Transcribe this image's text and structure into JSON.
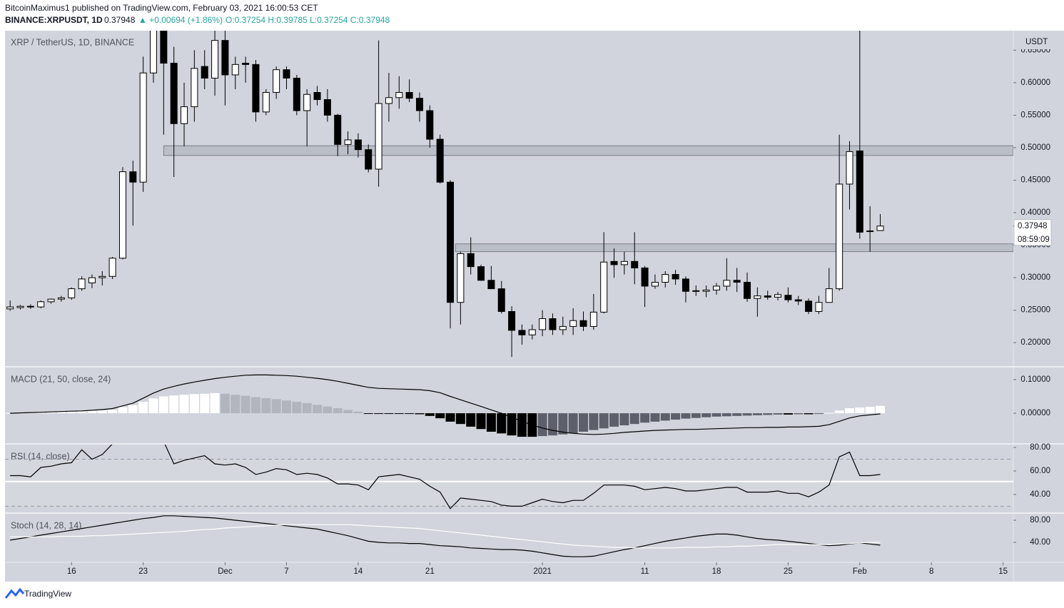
{
  "header": {
    "byline": "BitcoinMaximus1 published on TradingView.com, February 03, 2021 16:00:53 CET",
    "symbol": "BINANCE:XRPUSDT, 1D",
    "last": "0.37948",
    "change": "▲ +0.00694 (+1.86%)",
    "ohlc": "O:0.37254 H:0.39785 L:0.37254 C:0.37948"
  },
  "footer": {
    "brand": "TradingView"
  },
  "chart_data": [
    {
      "type": "candlestick",
      "title": "XRP / TetherUS, 1D, BINANCE",
      "currency": "USDT",
      "up_color": "#ffffff",
      "down_color": "#000000",
      "border_color": "#000000",
      "x": [
        0,
        1,
        2,
        3,
        4,
        5,
        6,
        7,
        8,
        9,
        10,
        11,
        12,
        13,
        14,
        15,
        16,
        17,
        18,
        19,
        20,
        21,
        22,
        23,
        24,
        25,
        26,
        27,
        28,
        29,
        30,
        31,
        32,
        33,
        34,
        35,
        36,
        37,
        38,
        39,
        40,
        41,
        42,
        43,
        44,
        45,
        46,
        47,
        48,
        49,
        50,
        51,
        52,
        53,
        54,
        55,
        56,
        57,
        58,
        59,
        60,
        61,
        62,
        63,
        64,
        65,
        66,
        67,
        68,
        69,
        70,
        71,
        72,
        73,
        74,
        75,
        76,
        77,
        78,
        79,
        80,
        81,
        82,
        83,
        84,
        85
      ],
      "open": [
        0.252,
        0.254,
        0.255,
        0.255,
        0.263,
        0.267,
        0.269,
        0.283,
        0.292,
        0.3,
        0.302,
        0.33,
        0.463,
        0.447,
        0.615,
        0.7,
        0.63,
        0.537,
        0.563,
        0.625,
        0.607,
        0.665,
        0.612,
        0.63,
        0.628,
        0.555,
        0.585,
        0.62,
        0.607,
        0.557,
        0.585,
        0.574,
        0.55,
        0.505,
        0.512,
        0.497,
        0.467,
        0.568,
        0.577,
        0.585,
        0.576,
        0.557,
        0.513,
        0.447,
        0.262,
        0.337,
        0.317,
        0.296,
        0.283,
        0.248,
        0.219,
        0.212,
        0.22,
        0.237,
        0.22,
        0.225,
        0.234,
        0.225,
        0.247,
        0.325,
        0.32,
        0.325,
        0.315,
        0.287,
        0.293,
        0.305,
        0.298,
        0.28,
        0.279,
        0.281,
        0.287,
        0.296,
        0.293,
        0.268,
        0.272,
        0.27,
        0.273,
        0.266,
        0.264,
        0.248,
        0.262,
        0.283,
        0.444,
        0.495,
        0.371,
        0.37254
      ],
      "high": [
        0.265,
        0.258,
        0.259,
        0.265,
        0.268,
        0.272,
        0.285,
        0.302,
        0.305,
        0.31,
        0.332,
        0.47,
        0.48,
        0.64,
        0.78,
        0.78,
        0.655,
        0.6,
        0.65,
        0.65,
        0.7,
        0.7,
        0.64,
        0.64,
        0.635,
        0.59,
        0.625,
        0.625,
        0.612,
        0.59,
        0.595,
        0.59,
        0.552,
        0.525,
        0.522,
        0.505,
        0.665,
        0.615,
        0.61,
        0.605,
        0.585,
        0.565,
        0.52,
        0.45,
        0.34,
        0.362,
        0.32,
        0.318,
        0.295,
        0.256,
        0.228,
        0.228,
        0.25,
        0.245,
        0.24,
        0.253,
        0.248,
        0.275,
        0.37,
        0.345,
        0.34,
        0.37,
        0.318,
        0.305,
        0.31,
        0.312,
        0.302,
        0.288,
        0.288,
        0.292,
        0.33,
        0.315,
        0.308,
        0.285,
        0.28,
        0.278,
        0.285,
        0.272,
        0.268,
        0.272,
        0.315,
        0.52,
        0.51,
        0.79,
        0.41,
        0.39785
      ],
      "low": [
        0.249,
        0.251,
        0.252,
        0.253,
        0.26,
        0.263,
        0.266,
        0.28,
        0.284,
        0.288,
        0.298,
        0.328,
        0.38,
        0.432,
        0.6,
        0.52,
        0.455,
        0.502,
        0.54,
        0.59,
        0.58,
        0.565,
        0.59,
        0.6,
        0.54,
        0.55,
        0.575,
        0.59,
        0.55,
        0.502,
        0.565,
        0.54,
        0.487,
        0.49,
        0.485,
        0.462,
        0.44,
        0.54,
        0.56,
        0.57,
        0.54,
        0.5,
        0.445,
        0.222,
        0.228,
        0.305,
        0.295,
        0.285,
        0.245,
        0.178,
        0.197,
        0.205,
        0.21,
        0.212,
        0.212,
        0.212,
        0.218,
        0.22,
        0.245,
        0.3,
        0.305,
        0.29,
        0.255,
        0.283,
        0.285,
        0.289,
        0.262,
        0.272,
        0.27,
        0.274,
        0.28,
        0.278,
        0.263,
        0.24,
        0.266,
        0.265,
        0.262,
        0.258,
        0.244,
        0.244,
        0.262,
        0.28,
        0.405,
        0.36,
        0.34,
        0.37254
      ],
      "close": [
        0.255,
        0.256,
        0.256,
        0.263,
        0.267,
        0.269,
        0.283,
        0.298,
        0.3,
        0.302,
        0.33,
        0.463,
        0.447,
        0.615,
        0.7,
        0.63,
        0.537,
        0.563,
        0.622,
        0.607,
        0.665,
        0.612,
        0.628,
        0.628,
        0.555,
        0.585,
        0.62,
        0.607,
        0.557,
        0.582,
        0.574,
        0.55,
        0.505,
        0.512,
        0.497,
        0.467,
        0.568,
        0.577,
        0.585,
        0.576,
        0.557,
        0.513,
        0.447,
        0.262,
        0.337,
        0.317,
        0.296,
        0.283,
        0.248,
        0.219,
        0.212,
        0.22,
        0.237,
        0.22,
        0.225,
        0.234,
        0.225,
        0.247,
        0.324,
        0.32,
        0.325,
        0.315,
        0.287,
        0.293,
        0.305,
        0.298,
        0.279,
        0.279,
        0.281,
        0.287,
        0.296,
        0.293,
        0.268,
        0.272,
        0.27,
        0.274,
        0.266,
        0.264,
        0.248,
        0.262,
        0.283,
        0.444,
        0.494,
        0.37,
        0.372,
        0.37948
      ],
      "zones": [
        {
          "start": 15,
          "low": 0.488,
          "high": 0.503
        },
        {
          "start": 43.5,
          "low": 0.34,
          "high": 0.352
        }
      ],
      "last_price": {
        "value": 0.37948,
        "label": "0.37948"
      },
      "countdown": "08:59:09",
      "xlim": [
        -0.5,
        98
      ],
      "xticks": [
        {
          "value": 6,
          "label": "16"
        },
        {
          "value": 13,
          "label": "23"
        },
        {
          "value": 21,
          "label": "Dec"
        },
        {
          "value": 27,
          "label": "7"
        },
        {
          "value": 34,
          "label": "14"
        },
        {
          "value": 41,
          "label": "21"
        },
        {
          "value": 52,
          "label": "2021"
        },
        {
          "value": 62,
          "label": "11"
        },
        {
          "value": 69,
          "label": "18"
        },
        {
          "value": 76,
          "label": "25"
        },
        {
          "value": 83,
          "label": "Feb"
        },
        {
          "value": 90,
          "label": "8"
        },
        {
          "value": 97,
          "label": "15"
        }
      ],
      "ylim": [
        0.164,
        0.68
      ],
      "yticks": [
        {
          "value": 0.2,
          "label": "0.20000"
        },
        {
          "value": 0.25,
          "label": "0.25000"
        },
        {
          "value": 0.3,
          "label": "0.30000"
        },
        {
          "value": 0.35,
          "label": "0.35000"
        },
        {
          "value": 0.4,
          "label": "0.40000"
        },
        {
          "value": 0.45,
          "label": "0.45000"
        },
        {
          "value": 0.5,
          "label": "0.50000"
        },
        {
          "value": 0.55,
          "label": "0.55000"
        },
        {
          "value": 0.6,
          "label": "0.60000"
        },
        {
          "value": 0.65,
          "label": "0.65000"
        }
      ]
    },
    {
      "type": "macd",
      "title": "MACD (21, 50, close, 24)",
      "colors": {
        "pos_up": "#ffffff",
        "pos_down": "#b2b5be",
        "neg_down": "#000000",
        "neg_up": "#5d606b",
        "line": "#000000"
      },
      "histogram": [
        0.001,
        0.001,
        0.002,
        0.002,
        0.003,
        0.004,
        0.005,
        0.006,
        0.007,
        0.008,
        0.01,
        0.018,
        0.024,
        0.034,
        0.044,
        0.05,
        0.053,
        0.055,
        0.057,
        0.058,
        0.06,
        0.058,
        0.055,
        0.052,
        0.048,
        0.045,
        0.042,
        0.038,
        0.034,
        0.03,
        0.025,
        0.02,
        0.015,
        0.01,
        0.005,
        -0.002,
        -0.002,
        -0.002,
        -0.002,
        -0.002,
        -0.003,
        -0.008,
        -0.015,
        -0.025,
        -0.032,
        -0.04,
        -0.047,
        -0.055,
        -0.06,
        -0.066,
        -0.07,
        -0.07,
        -0.068,
        -0.066,
        -0.063,
        -0.06,
        -0.055,
        -0.05,
        -0.045,
        -0.04,
        -0.036,
        -0.032,
        -0.028,
        -0.025,
        -0.022,
        -0.019,
        -0.016,
        -0.014,
        -0.012,
        -0.01,
        -0.009,
        -0.008,
        -0.007,
        -0.006,
        -0.005,
        -0.004,
        -0.004,
        -0.003,
        -0.003,
        -0.002,
        0.001,
        0.008,
        0.015,
        0.017,
        0.019,
        0.022
      ],
      "line": [
        0.0,
        0.001,
        0.002,
        0.003,
        0.004,
        0.005,
        0.006,
        0.007,
        0.009,
        0.011,
        0.014,
        0.022,
        0.03,
        0.045,
        0.06,
        0.072,
        0.08,
        0.087,
        0.093,
        0.098,
        0.103,
        0.107,
        0.11,
        0.113,
        0.114,
        0.114,
        0.113,
        0.112,
        0.11,
        0.107,
        0.104,
        0.1,
        0.095,
        0.089,
        0.083,
        0.077,
        0.074,
        0.073,
        0.072,
        0.071,
        0.07,
        0.067,
        0.061,
        0.05,
        0.04,
        0.03,
        0.02,
        0.01,
        0.0,
        -0.012,
        -0.024,
        -0.035,
        -0.044,
        -0.051,
        -0.056,
        -0.06,
        -0.062,
        -0.063,
        -0.062,
        -0.06,
        -0.057,
        -0.055,
        -0.053,
        -0.051,
        -0.05,
        -0.049,
        -0.048,
        -0.048,
        -0.047,
        -0.046,
        -0.045,
        -0.044,
        -0.043,
        -0.043,
        -0.042,
        -0.042,
        -0.041,
        -0.041,
        -0.04,
        -0.039,
        -0.034,
        -0.024,
        -0.014,
        -0.008,
        -0.005,
        -0.002
      ],
      "ylim": [
        -0.089,
        0.136
      ],
      "yticks": [
        {
          "value": 0.1,
          "label": "0.10000"
        },
        {
          "value": 0,
          "label": "0.00000"
        }
      ]
    },
    {
      "type": "rsi",
      "title": "RSI (14, close)",
      "color": "#000000",
      "bands": [
        30,
        70
      ],
      "level": 51,
      "values": [
        56,
        56,
        55,
        63,
        64,
        66,
        67,
        78,
        70,
        74,
        83,
        90,
        85,
        90,
        92,
        85,
        66,
        69,
        71,
        73,
        66,
        65,
        66,
        63,
        57,
        59,
        62,
        61,
        57,
        58,
        57,
        54,
        49,
        49,
        48,
        44,
        55,
        56,
        57,
        55,
        53,
        47,
        42,
        28,
        37,
        36,
        35,
        34,
        31,
        30,
        30,
        33,
        36,
        34,
        33,
        35,
        35,
        41,
        48,
        48,
        48,
        47,
        44,
        45,
        46,
        45,
        43,
        43,
        44,
        45,
        46,
        46,
        42,
        42,
        42,
        43,
        41,
        41,
        38,
        42,
        48,
        72,
        76,
        56,
        56,
        57
      ],
      "ylim": [
        24.8,
        82.4
      ],
      "yticks": [
        {
          "value": 80,
          "label": "80.00"
        },
        {
          "value": 60,
          "label": "60.00"
        },
        {
          "value": 40,
          "label": "40.00"
        }
      ]
    },
    {
      "type": "stoch",
      "title": "Stoch (14, 28, 14)",
      "series": [
        {
          "color": "#000000",
          "values": [
            44,
            47,
            50,
            53,
            56,
            59,
            62,
            65,
            68,
            71,
            74,
            77,
            80,
            83,
            85,
            88,
            88,
            87,
            86,
            85,
            84,
            82,
            80,
            78,
            76,
            74,
            72,
            70,
            68,
            66,
            64,
            60,
            56,
            52,
            47,
            42,
            40,
            39,
            39,
            38,
            38,
            36,
            34,
            33,
            32,
            30,
            29,
            28,
            27,
            27,
            26,
            24,
            21,
            18,
            15,
            14,
            14,
            15,
            19,
            23,
            27,
            30,
            34,
            38,
            42,
            45,
            48,
            51,
            53,
            55,
            55,
            53,
            50,
            47,
            45,
            44,
            42,
            40,
            38,
            36,
            34,
            35,
            37,
            39,
            37,
            35
          ]
        },
        {
          "color": "#ffffff",
          "values": [
            50,
            50,
            50,
            50,
            50,
            51,
            51,
            51,
            52,
            52,
            53,
            54,
            55,
            56,
            57,
            58,
            59,
            60,
            62,
            63,
            64,
            66,
            67,
            68,
            69,
            70,
            71,
            72,
            72,
            72,
            72,
            72,
            72,
            72,
            71,
            70,
            69,
            68,
            67,
            66,
            65,
            63,
            61,
            59,
            57,
            55,
            53,
            51,
            49,
            47,
            45,
            43,
            41,
            39,
            37,
            35,
            34,
            33,
            32,
            31,
            31,
            30,
            30,
            30,
            30,
            30,
            31,
            31,
            31,
            32,
            32,
            33,
            33,
            34,
            35,
            36,
            36,
            36,
            36,
            36,
            36,
            37,
            38,
            39,
            40,
            40
          ]
        }
      ],
      "ylim": [
        5.2,
        91.6
      ],
      "yticks": [
        {
          "value": 80,
          "label": "80.00"
        },
        {
          "value": 40,
          "label": "40.00"
        }
      ]
    }
  ]
}
